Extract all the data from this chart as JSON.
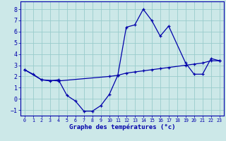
{
  "xlabel": "Graphe des températures (°c)",
  "bg_color": "#cce8e8",
  "line_color": "#0000aa",
  "grid_color": "#99cccc",
  "xlim": [
    -0.5,
    23.5
  ],
  "ylim": [
    -1.5,
    8.7
  ],
  "xticks": [
    0,
    1,
    2,
    3,
    4,
    5,
    6,
    7,
    8,
    9,
    10,
    11,
    12,
    13,
    14,
    15,
    16,
    17,
    18,
    19,
    20,
    21,
    22,
    23
  ],
  "yticks": [
    -1,
    0,
    1,
    2,
    3,
    4,
    5,
    6,
    7,
    8
  ],
  "main_x": [
    0,
    1,
    2,
    3,
    4,
    5,
    6,
    7,
    8,
    9,
    10,
    11,
    12,
    13,
    14,
    15,
    16,
    17,
    19,
    20,
    21,
    22,
    23
  ],
  "main_y": [
    2.6,
    2.2,
    1.7,
    1.6,
    1.7,
    0.3,
    -0.2,
    -1.1,
    -1.1,
    -0.6,
    0.4,
    2.1,
    6.4,
    6.6,
    8.0,
    7.0,
    5.6,
    6.5,
    3.2,
    2.2,
    2.2,
    3.6,
    3.4
  ],
  "trend_x": [
    0,
    2,
    4,
    10,
    11,
    12,
    13,
    14,
    15,
    16,
    17,
    19,
    20,
    21,
    22,
    23
  ],
  "trend_y": [
    2.6,
    1.7,
    1.6,
    2.0,
    2.1,
    2.3,
    2.4,
    2.5,
    2.6,
    2.7,
    2.8,
    3.0,
    3.1,
    3.2,
    3.4,
    3.4
  ],
  "xlabel_fontsize": 6.5,
  "tick_fontsize_x": 4.8,
  "tick_fontsize_y": 6.0
}
